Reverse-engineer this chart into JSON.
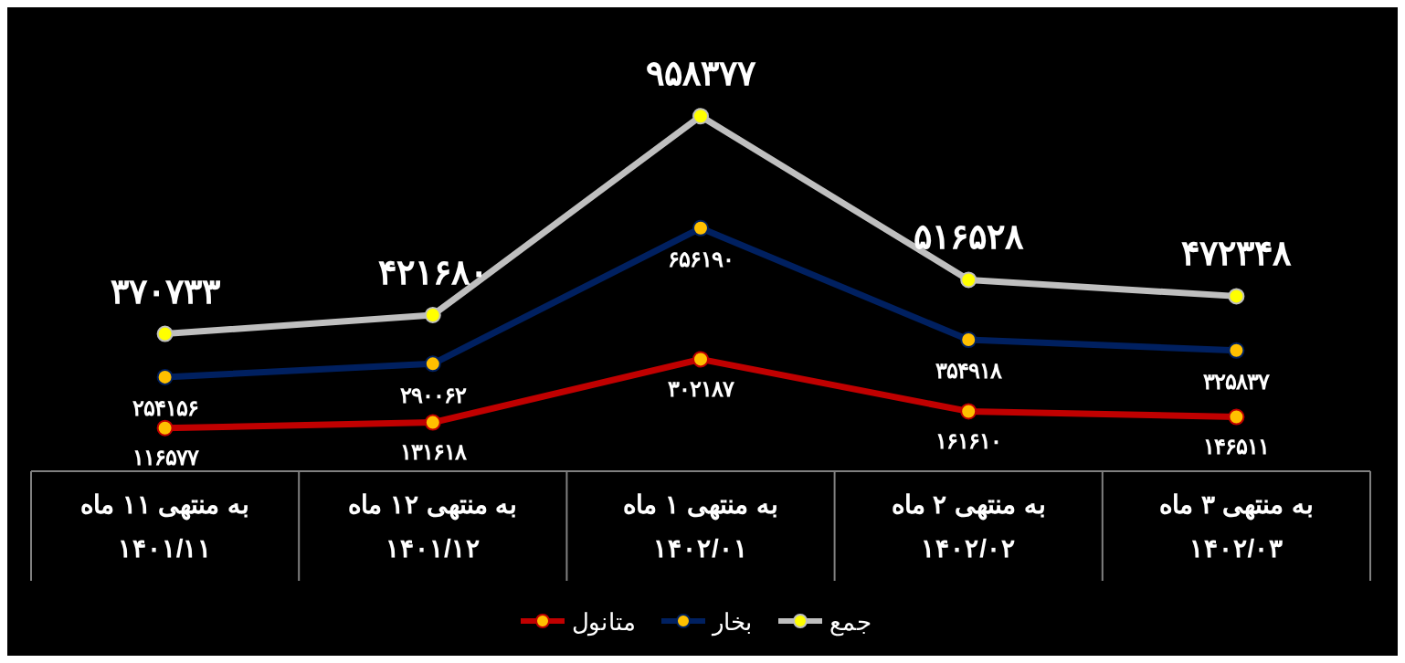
{
  "chart_data": {
    "type": "line",
    "categories": [
      "به منتهی ۱۱ ماه\n۱۴۰۱/۱۱",
      "به منتهی ۱۲ ماه\n۱۴۰۱/۱۲",
      "به منتهی ۱ ماه\n۱۴۰۲/۰۱",
      "به منتهی ۲ ماه\n۱۴۰۲/۰۲",
      "به منتهی ۳ ماه\n۱۴۰۲/۰۳"
    ],
    "series": [
      {
        "name": "متانول",
        "color": "#c00000",
        "values": [
          116577,
          131618,
          302187,
          161610,
          146511
        ],
        "value_labels": [
          "۱۱۶۵۷۷",
          "۱۳۱۶۱۸",
          "۳۰۲۱۸۷",
          "۱۶۱۶۱۰",
          "۱۴۶۵۱۱"
        ]
      },
      {
        "name": "بخار",
        "color": "#002060",
        "values": [
          254156,
          290062,
          656190,
          354918,
          325837
        ],
        "value_labels": [
          "۲۵۴۱۵۶",
          "۲۹۰۰۶۲",
          "۶۵۶۱۹۰",
          "۳۵۴۹۱۸",
          "۳۲۵۸۳۷"
        ]
      },
      {
        "name": "جمع",
        "color": "#bfbfbf",
        "values": [
          370733,
          421680,
          958377,
          516528,
          472348
        ],
        "value_labels": [
          "۳۷۰۷۳۳",
          "۴۲۱۶۸۰",
          "۹۵۸۳۷۷",
          "۵۱۶۵۲۸",
          "۴۷۲۳۴۸"
        ]
      }
    ],
    "marker": "circle",
    "line_style": "solid",
    "legend": "bottom"
  }
}
